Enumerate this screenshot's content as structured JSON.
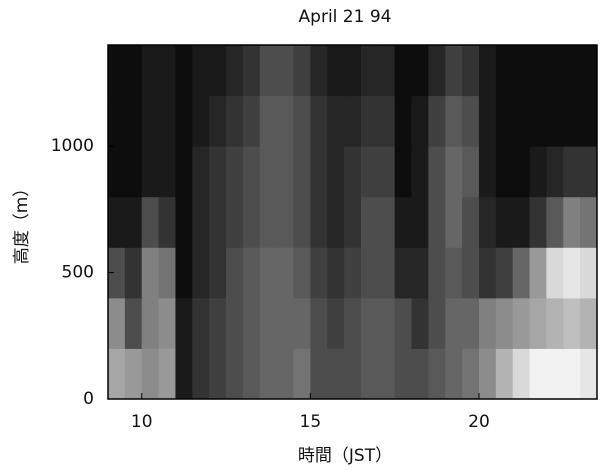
{
  "chart_data": {
    "type": "heatmap",
    "title": "April 21 94",
    "xlabel": "時間（JST）",
    "ylabel": "高度（m）",
    "xbins": [
      9,
      9.5,
      10,
      10.5,
      11,
      11.5,
      12,
      12.5,
      13,
      13.5,
      14,
      14.5,
      15,
      15.5,
      16,
      16.5,
      17,
      17.5,
      18,
      18.5,
      19,
      19.5,
      20,
      20.5,
      21,
      21.5,
      22,
      22.5,
      23,
      23.5
    ],
    "ybins": [
      0,
      200,
      400,
      600,
      800,
      1000,
      1200,
      1400
    ],
    "z": [
      [
        0.65,
        0.6,
        0.55,
        0.6,
        0.1,
        0.2,
        0.25,
        0.3,
        0.35,
        0.4,
        0.4,
        0.45,
        0.3,
        0.3,
        0.3,
        0.35,
        0.35,
        0.3,
        0.3,
        0.35,
        0.4,
        0.45,
        0.55,
        0.7,
        0.85,
        0.95,
        0.95,
        0.95,
        0.9
      ],
      [
        0.55,
        0.3,
        0.5,
        0.55,
        0.1,
        0.2,
        0.25,
        0.3,
        0.35,
        0.4,
        0.4,
        0.4,
        0.3,
        0.25,
        0.3,
        0.35,
        0.35,
        0.3,
        0.2,
        0.3,
        0.4,
        0.4,
        0.5,
        0.55,
        0.6,
        0.65,
        0.7,
        0.75,
        0.7
      ],
      [
        0.3,
        0.2,
        0.5,
        0.45,
        0.05,
        0.15,
        0.2,
        0.3,
        0.35,
        0.4,
        0.4,
        0.35,
        0.25,
        0.2,
        0.25,
        0.3,
        0.3,
        0.15,
        0.15,
        0.3,
        0.35,
        0.3,
        0.2,
        0.25,
        0.4,
        0.6,
        0.85,
        0.9,
        0.85
      ],
      [
        0.1,
        0.1,
        0.3,
        0.2,
        0.05,
        0.15,
        0.2,
        0.25,
        0.3,
        0.35,
        0.35,
        0.3,
        0.2,
        0.15,
        0.2,
        0.3,
        0.3,
        0.1,
        0.1,
        0.3,
        0.4,
        0.3,
        0.15,
        0.1,
        0.1,
        0.2,
        0.35,
        0.5,
        0.45
      ],
      [
        0.05,
        0.05,
        0.1,
        0.1,
        0.05,
        0.15,
        0.2,
        0.25,
        0.3,
        0.35,
        0.35,
        0.3,
        0.2,
        0.15,
        0.2,
        0.25,
        0.25,
        0.05,
        0.1,
        0.3,
        0.4,
        0.35,
        0.1,
        0.05,
        0.05,
        0.1,
        0.15,
        0.2,
        0.2
      ],
      [
        0.05,
        0.05,
        0.1,
        0.1,
        0.05,
        0.1,
        0.15,
        0.2,
        0.25,
        0.35,
        0.35,
        0.3,
        0.2,
        0.15,
        0.15,
        0.2,
        0.2,
        0.05,
        0.1,
        0.25,
        0.35,
        0.3,
        0.1,
        0.05,
        0.05,
        0.05,
        0.05,
        0.05,
        0.05
      ],
      [
        0.05,
        0.05,
        0.1,
        0.1,
        0.05,
        0.1,
        0.1,
        0.15,
        0.2,
        0.3,
        0.3,
        0.25,
        0.15,
        0.1,
        0.1,
        0.15,
        0.15,
        0.05,
        0.05,
        0.15,
        0.25,
        0.2,
        0.1,
        0.05,
        0.05,
        0.05,
        0.05,
        0.05,
        0.05
      ]
    ],
    "xlim": [
      9,
      23.5
    ],
    "ylim": [
      0,
      1400
    ],
    "xticks": [
      10,
      15,
      20
    ],
    "yticks": [
      0,
      500,
      1000
    ]
  }
}
